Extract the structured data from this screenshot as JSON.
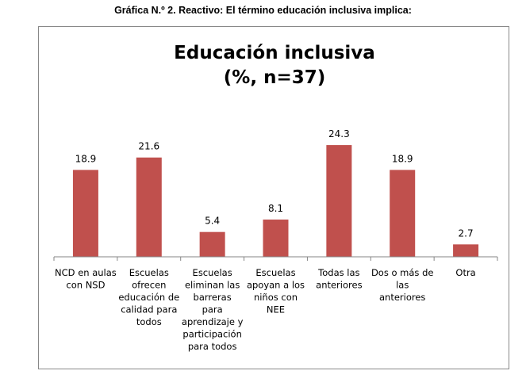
{
  "caption": "Gráfica N.º 2. Reactivo: El término educación inclusiva implica:",
  "chart_data": {
    "type": "bar",
    "title": [
      "Educación inclusiva",
      "(%, n=37)"
    ],
    "xlabel": "",
    "ylabel": "",
    "ylim": [
      0,
      30
    ],
    "grid": false,
    "legend": "none",
    "bar_color": "#c0504d",
    "axis_color": "#868686",
    "categories": [
      [
        "NCD en aulas",
        "con NSD"
      ],
      [
        "Escuelas",
        "ofrecen",
        "educación de",
        "calidad para",
        "todos"
      ],
      [
        "Escuelas",
        "eliminan las",
        "barreras",
        "para",
        "aprendizaje y",
        "participación",
        "para todos"
      ],
      [
        "Escuelas",
        "apoyan a los",
        "niños con",
        "NEE"
      ],
      [
        "Todas las",
        "anteriores"
      ],
      [
        "Dos o más de",
        "las",
        "anteriores"
      ],
      [
        "Otra"
      ]
    ],
    "values": [
      18.9,
      21.6,
      5.4,
      8.1,
      24.3,
      18.9,
      2.7
    ],
    "data_labels": [
      "18.9",
      "21.6",
      "5.4",
      "8.1",
      "24.3",
      "18.9",
      "2.7"
    ]
  }
}
